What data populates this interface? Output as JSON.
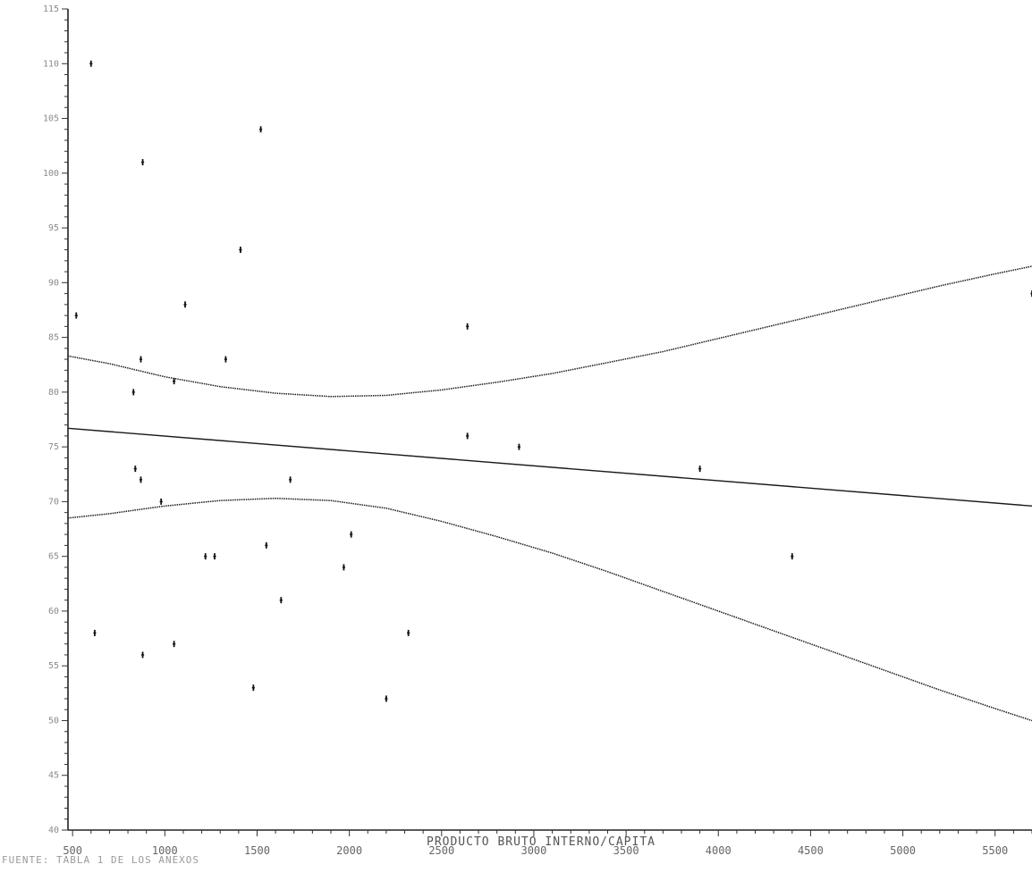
{
  "chart_data": {
    "type": "scatter",
    "xlabel": "PRODUCTO BRUTO INTERNO/CAPITA",
    "ylabel": "",
    "source_note": "FUENTE: TABLA 1 DE LOS ANEXOS",
    "xlim": [
      475,
      5700
    ],
    "ylim": [
      40,
      115
    ],
    "x_ticks": [
      500,
      1000,
      1500,
      2000,
      2500,
      3000,
      3500,
      4000,
      4500,
      5000,
      5500
    ],
    "x_tick_labels": [
      "500",
      "1000",
      "1500",
      "2000",
      "2500",
      "3000",
      "3500",
      "4000",
      "4500",
      "5000",
      "5500"
    ],
    "y_ticks": [
      40,
      45,
      50,
      55,
      60,
      65,
      70,
      75,
      80,
      85,
      90,
      95,
      100,
      105,
      110,
      115
    ],
    "y_tick_labels": [
      "40",
      "45",
      "50",
      "55",
      "60",
      "65",
      "70",
      "75",
      "80",
      "85",
      "90",
      "95",
      "100",
      "105",
      "110",
      "115"
    ],
    "grid": false,
    "legend": "none",
    "points": [
      {
        "x": 600,
        "y": 110
      },
      {
        "x": 1520,
        "y": 104
      },
      {
        "x": 880,
        "y": 101
      },
      {
        "x": 1410,
        "y": 93
      },
      {
        "x": 520,
        "y": 87
      },
      {
        "x": 1110,
        "y": 88
      },
      {
        "x": 2640,
        "y": 86
      },
      {
        "x": 5700,
        "y": 89
      },
      {
        "x": 870,
        "y": 83
      },
      {
        "x": 1330,
        "y": 83
      },
      {
        "x": 1050,
        "y": 81
      },
      {
        "x": 830,
        "y": 80
      },
      {
        "x": 2640,
        "y": 76
      },
      {
        "x": 2920,
        "y": 75
      },
      {
        "x": 3900,
        "y": 73
      },
      {
        "x": 840,
        "y": 73
      },
      {
        "x": 870,
        "y": 72
      },
      {
        "x": 1680,
        "y": 72
      },
      {
        "x": 980,
        "y": 70
      },
      {
        "x": 2010,
        "y": 67
      },
      {
        "x": 1550,
        "y": 66
      },
      {
        "x": 1220,
        "y": 65
      },
      {
        "x": 1270,
        "y": 65
      },
      {
        "x": 4400,
        "y": 65
      },
      {
        "x": 1970,
        "y": 64
      },
      {
        "x": 1630,
        "y": 61
      },
      {
        "x": 620,
        "y": 58
      },
      {
        "x": 2320,
        "y": 58
      },
      {
        "x": 1050,
        "y": 57
      },
      {
        "x": 880,
        "y": 56
      },
      {
        "x": 1480,
        "y": 53
      },
      {
        "x": 2200,
        "y": 52
      }
    ],
    "lines": [
      {
        "role": "regression",
        "x": [
          475,
          5700
        ],
        "y": [
          76.7,
          69.6
        ]
      },
      {
        "role": "upper-band",
        "x": [
          475,
          700,
          1000,
          1300,
          1600,
          1900,
          2200,
          2500,
          2800,
          3100,
          3400,
          3700,
          4000,
          4300,
          4600,
          4900,
          5200,
          5500,
          5700
        ],
        "y": [
          83.3,
          82.6,
          81.4,
          80.5,
          79.9,
          79.6,
          79.7,
          80.2,
          80.9,
          81.7,
          82.7,
          83.7,
          84.9,
          86.1,
          87.3,
          88.5,
          89.7,
          90.8,
          91.5
        ]
      },
      {
        "role": "lower-band",
        "x": [
          475,
          700,
          1000,
          1300,
          1600,
          1900,
          2200,
          2500,
          2800,
          3100,
          3400,
          3700,
          4000,
          4300,
          4600,
          4900,
          5200,
          5500,
          5700
        ],
        "y": [
          68.5,
          68.9,
          69.6,
          70.1,
          70.3,
          70.1,
          69.4,
          68.2,
          66.8,
          65.3,
          63.6,
          61.8,
          60.0,
          58.2,
          56.4,
          54.6,
          52.8,
          51.1,
          50.0
        ]
      }
    ]
  }
}
